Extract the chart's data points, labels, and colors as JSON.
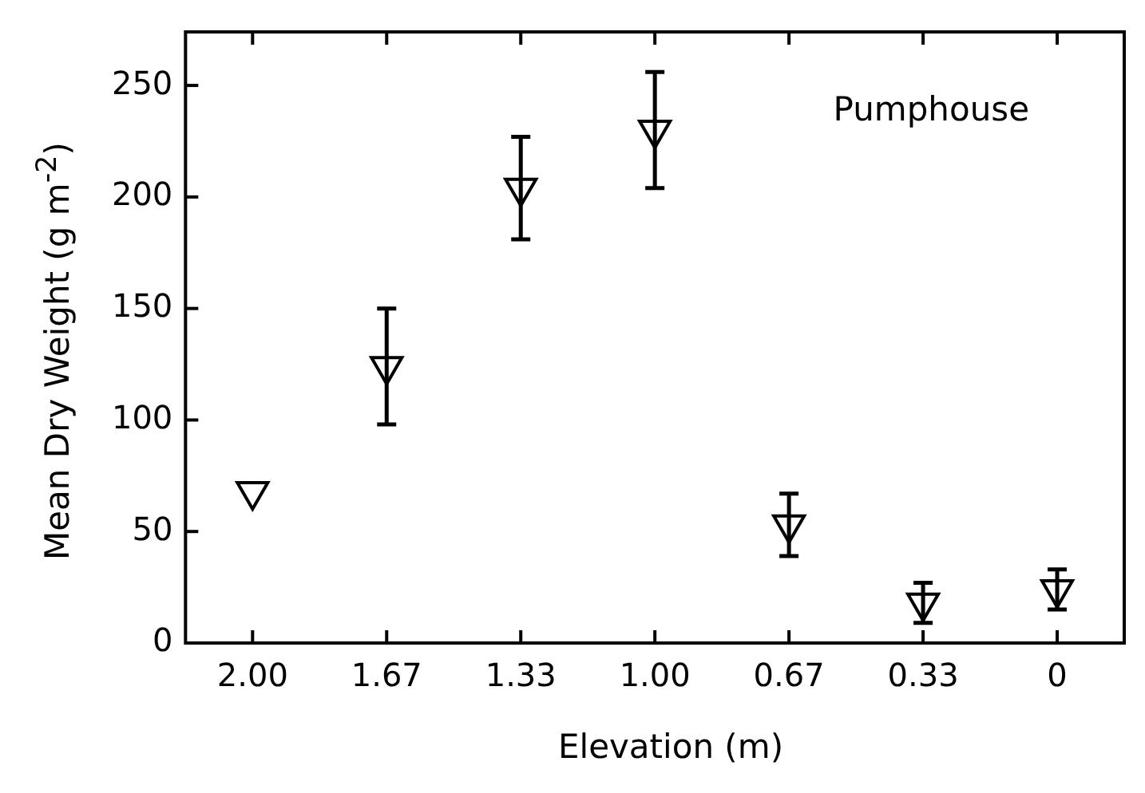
{
  "chart_data": {
    "type": "scatter",
    "xlabel": "Elevation (m)",
    "ylabel": "Mean Dry Weight (g m$^{-2}$)",
    "annotations": [
      "Pumphouse"
    ],
    "categories": [
      "2.00",
      "1.67",
      "1.33",
      "1.00",
      "0.67",
      "0.33",
      "0"
    ],
    "ylim": [
      0,
      274
    ],
    "yticks": [
      0,
      50,
      100,
      150,
      200,
      250
    ],
    "marker": "triangle",
    "series": [
      {
        "color": "#000000",
        "values": [
          68,
          124,
          204,
          230,
          53,
          18,
          24
        ],
        "errors": [
          null,
          26,
          23,
          26,
          14,
          9,
          9
        ]
      }
    ]
  }
}
